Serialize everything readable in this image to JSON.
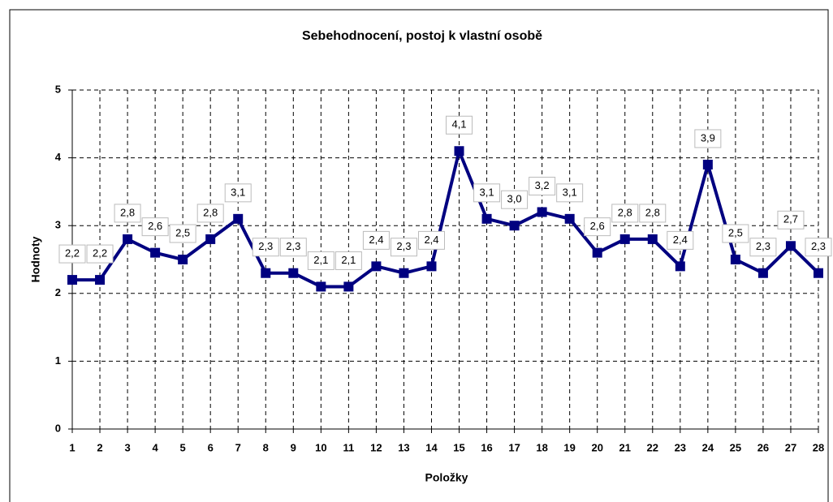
{
  "chart_data": {
    "type": "line",
    "title": "Sebehodnocení, postoj k vlastní osobě",
    "xlabel": "Položky",
    "ylabel": "Hodnoty",
    "x": [
      1,
      2,
      3,
      4,
      5,
      6,
      7,
      8,
      9,
      10,
      11,
      12,
      13,
      14,
      15,
      16,
      17,
      18,
      19,
      20,
      21,
      22,
      23,
      24,
      25,
      26,
      27,
      28
    ],
    "xlim": [
      1,
      28
    ],
    "xticks": [
      1,
      2,
      3,
      4,
      5,
      6,
      7,
      8,
      9,
      10,
      11,
      12,
      13,
      14,
      15,
      16,
      17,
      18,
      19,
      20,
      21,
      22,
      23,
      24,
      25,
      26,
      27,
      28
    ],
    "ylim": [
      0,
      5
    ],
    "yticks": [
      0,
      1,
      2,
      3,
      4,
      5
    ],
    "grid": true,
    "series": [
      {
        "color": "#000080",
        "values": [
          2.2,
          2.2,
          2.8,
          2.6,
          2.5,
          2.8,
          3.1,
          2.3,
          2.3,
          2.1,
          2.1,
          2.4,
          2.3,
          2.4,
          4.1,
          3.1,
          3.0,
          3.2,
          3.1,
          2.6,
          2.8,
          2.8,
          2.4,
          3.9,
          2.5,
          2.3,
          2.7,
          2.3
        ],
        "value_labels": [
          "2,2",
          "2,2",
          "2,8",
          "2,6",
          "2,5",
          "2,8",
          "3,1",
          "2,3",
          "2,3",
          "2,1",
          "2,1",
          "2,4",
          "2,3",
          "2,4",
          "4,1",
          "3,1",
          "3,0",
          "3,2",
          "3,1",
          "2,6",
          "2,8",
          "2,8",
          "2,4",
          "3,9",
          "2,5",
          "2,3",
          "2,7",
          "2,3"
        ]
      }
    ]
  }
}
